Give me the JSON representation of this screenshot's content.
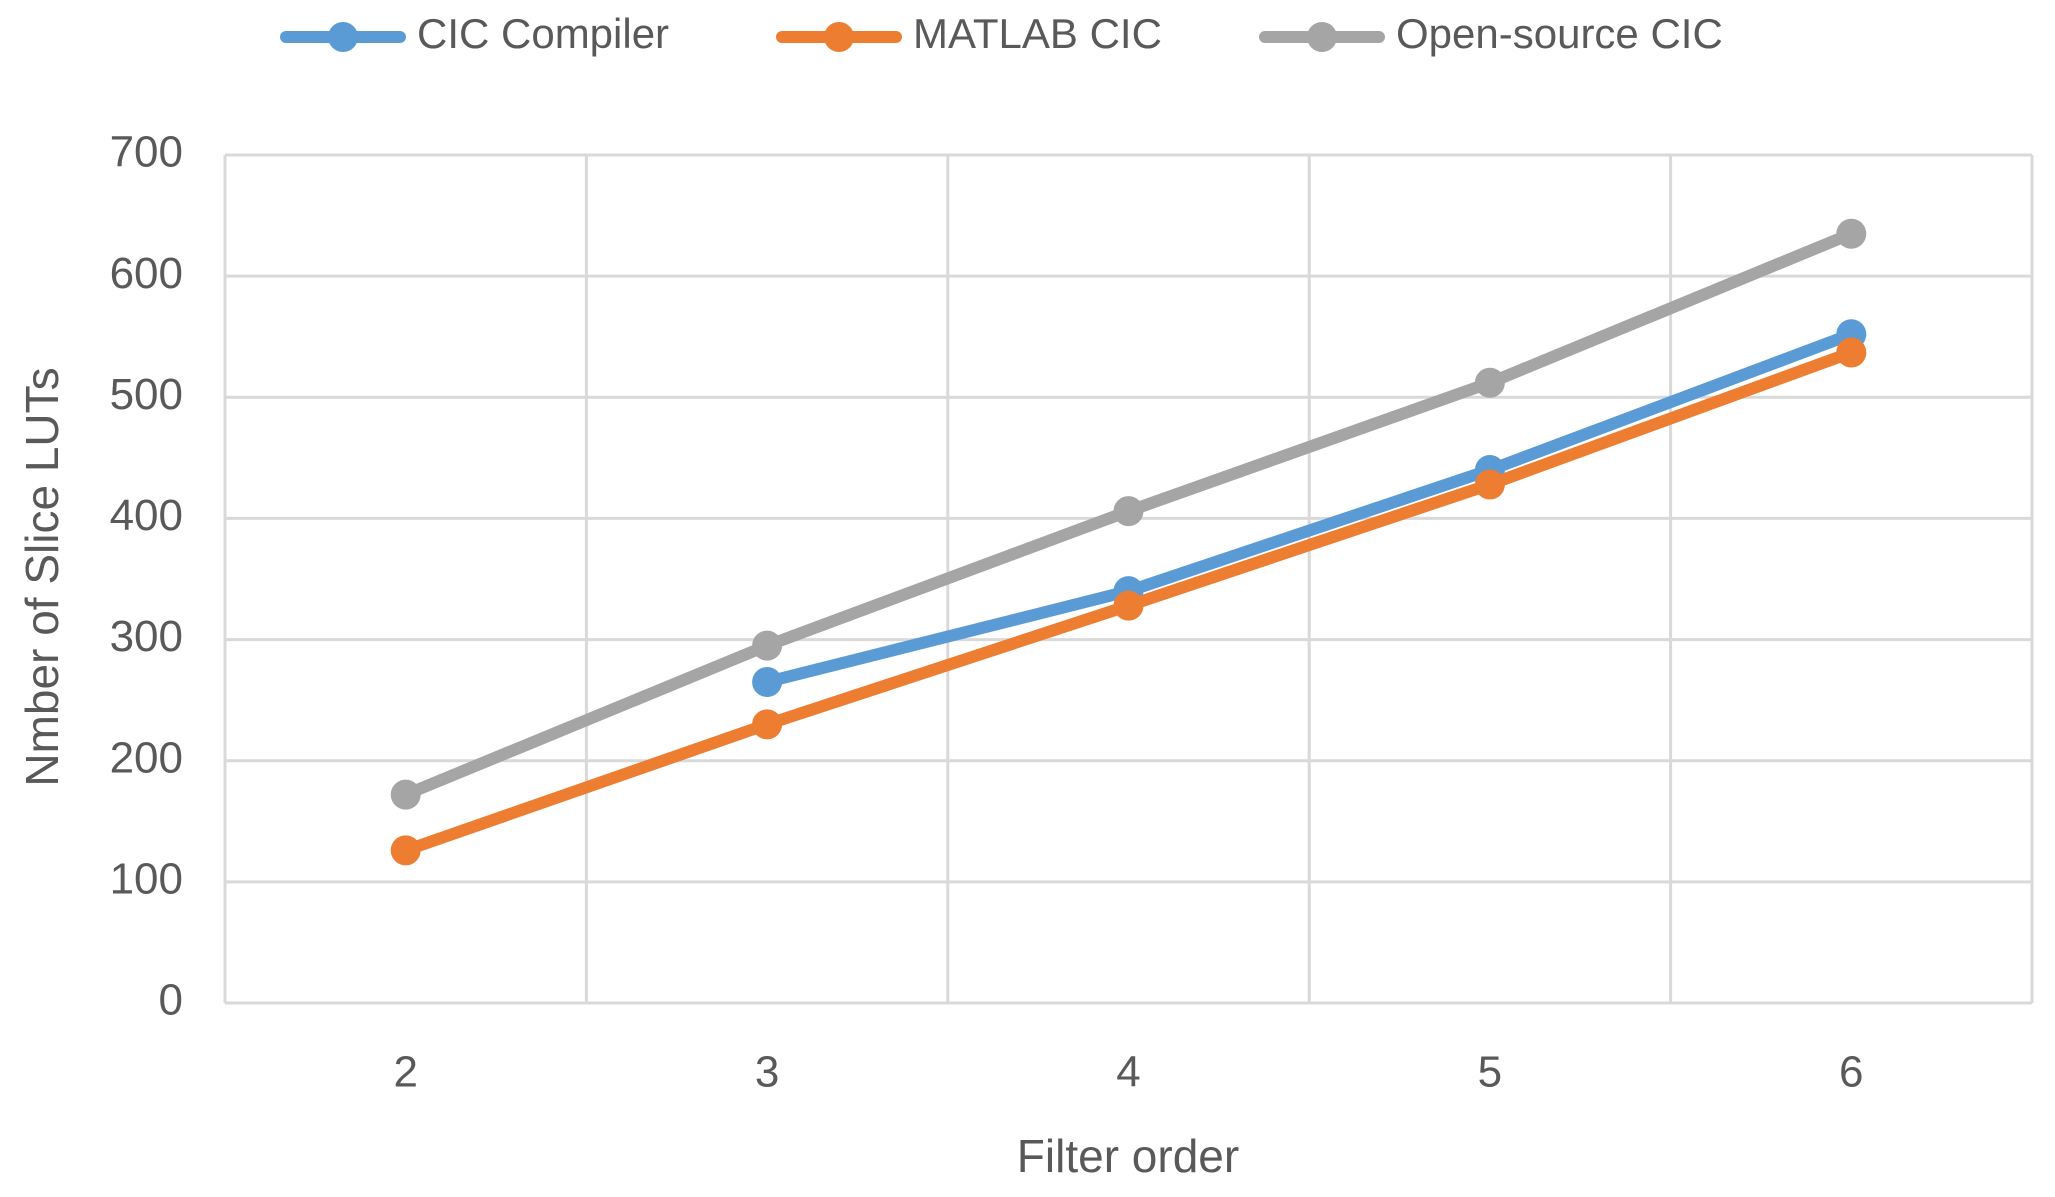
{
  "chart_data": {
    "type": "line",
    "x_label": "Filter order",
    "y_label": "Nmber of Slice LUTs",
    "categories": [
      "2",
      "3",
      "4",
      "5",
      "6"
    ],
    "series": [
      {
        "name": "CIC Compiler",
        "color": "#5b9bd5",
        "values": [
          null,
          265,
          340,
          440,
          552
        ]
      },
      {
        "name": "MATLAB CIC",
        "color": "#ed7d31",
        "values": [
          126,
          230,
          328,
          428,
          537
        ]
      },
      {
        "name": "Open-source CIC",
        "color": "#a5a5a5",
        "values": [
          172,
          295,
          406,
          512,
          635
        ]
      }
    ],
    "ylim": [
      0,
      700
    ],
    "yticks": [
      0,
      100,
      200,
      300,
      400,
      500,
      600,
      700
    ],
    "grid": true,
    "legend": "top"
  }
}
